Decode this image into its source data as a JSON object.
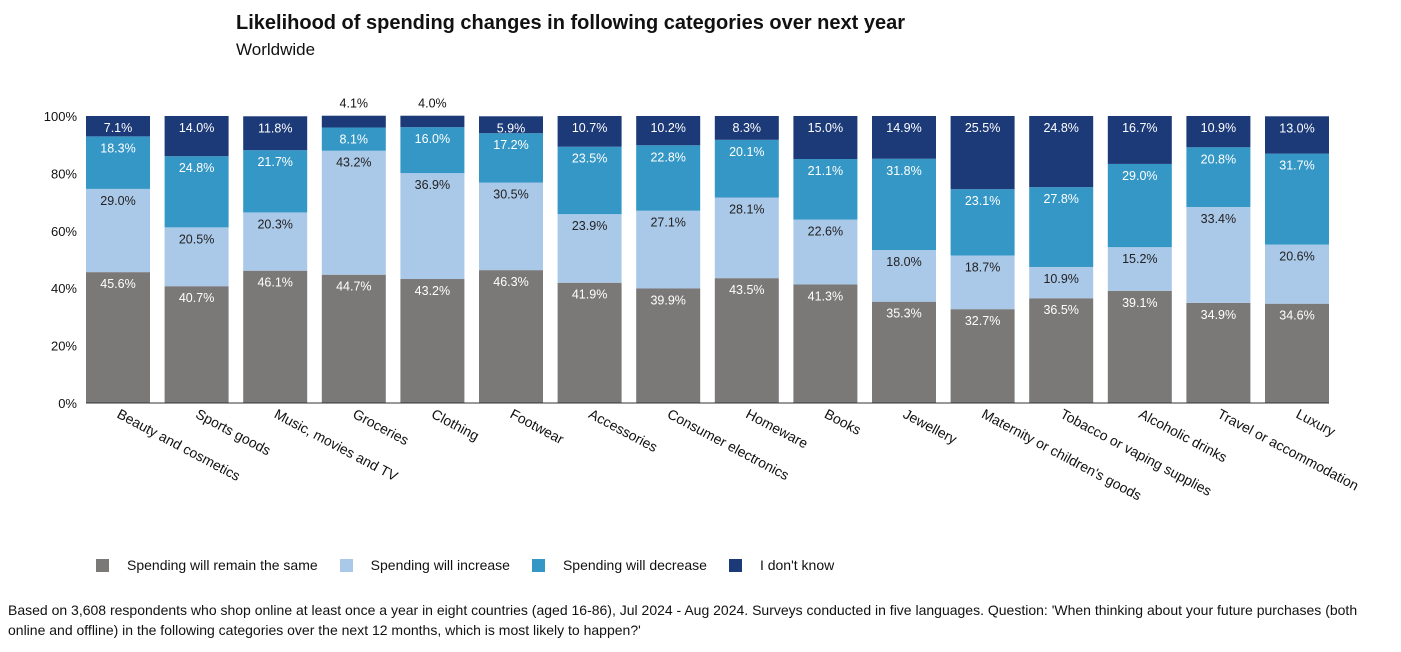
{
  "chart_data": {
    "type": "bar",
    "stacked": true,
    "title": "Likelihood of spending changes in following categories over next year",
    "subtitle": "Worldwide",
    "ylim": [
      0,
      100
    ],
    "yticks": [
      "0%",
      "20%",
      "40%",
      "60%",
      "80%",
      "100%"
    ],
    "categories": [
      "Beauty and cosmetics",
      "Sports goods",
      "Music, movies and TV",
      "Groceries",
      "Clothing",
      "Footwear",
      "Accessories",
      "Consumer electronics",
      "Homeware",
      "Books",
      "Jewellery",
      "Maternity or children's goods",
      "Tobacco or vaping supplies",
      "Alcoholic drinks",
      "Travel or accommodation",
      "Luxury"
    ],
    "series": [
      {
        "name": "Spending will remain the same",
        "color": "#7b7878",
        "values": [
          45.6,
          40.7,
          46.1,
          44.7,
          43.2,
          46.3,
          41.9,
          39.9,
          43.5,
          41.3,
          35.3,
          32.7,
          36.5,
          39.1,
          34.9,
          34.6
        ],
        "labels": [
          "45.6%",
          "40.7%",
          "46.1%",
          "44.7%",
          "43.2%",
          "46.3%",
          "41.9%",
          "39.9%",
          "43.5%",
          "41.3%",
          "35.3%",
          "32.7%",
          "36.5%",
          "39.1%",
          "34.9%",
          "34.6%"
        ]
      },
      {
        "name": "Spending will increase",
        "color": "#aac8e8",
        "values": [
          29.0,
          20.5,
          20.3,
          43.2,
          36.9,
          30.5,
          23.9,
          27.1,
          28.1,
          22.6,
          18.0,
          18.7,
          10.9,
          15.2,
          33.4,
          20.6
        ],
        "labels": [
          "29.0%",
          "20.5%",
          "20.3%",
          "43.2%",
          "36.9%",
          "30.5%",
          "23.9%",
          "27.1%",
          "28.1%",
          "22.6%",
          "18.0%",
          "18.7%",
          "10.9%",
          "15.2%",
          "33.4%",
          "20.6%"
        ]
      },
      {
        "name": "Spending will decrease",
        "color": "#3497c6",
        "values": [
          18.3,
          24.8,
          21.7,
          8.1,
          16.0,
          17.2,
          23.5,
          22.8,
          20.1,
          21.1,
          31.8,
          23.1,
          27.8,
          29.0,
          20.8,
          31.7
        ],
        "labels": [
          "18.3%",
          "24.8%",
          "21.7%",
          "8.1%",
          "16.0%",
          "17.2%",
          "23.5%",
          "22.8%",
          "20.1%",
          "21.1%",
          "31.8%",
          "23.1%",
          "27.8%",
          "29.0%",
          "20.8%",
          "31.7%"
        ]
      },
      {
        "name": "I don't know",
        "color": "#1c3a78",
        "values": [
          7.1,
          14.0,
          11.8,
          4.1,
          4.0,
          5.9,
          10.7,
          10.2,
          8.3,
          15.0,
          14.9,
          25.5,
          24.8,
          16.7,
          10.9,
          13.0
        ],
        "labels": [
          "7.1%",
          "14.0%",
          "11.8%",
          "4.1%",
          "4.0%",
          "5.9%",
          "10.7%",
          "10.2%",
          "8.3%",
          "15.0%",
          "14.9%",
          "25.5%",
          "24.8%",
          "16.7%",
          "10.9%",
          "13.0%"
        ]
      }
    ],
    "legend_position": "bottom",
    "grid": false
  },
  "footnote": "Based on 3,608 respondents who shop online at least once a year in eight countries (aged 16-86), Jul 2024 - Aug 2024. Surveys conducted in five languages. Question: 'When thinking about your future purchases (both online and offline) in the following categories over the next 12 months, which is most likely to happen?'"
}
